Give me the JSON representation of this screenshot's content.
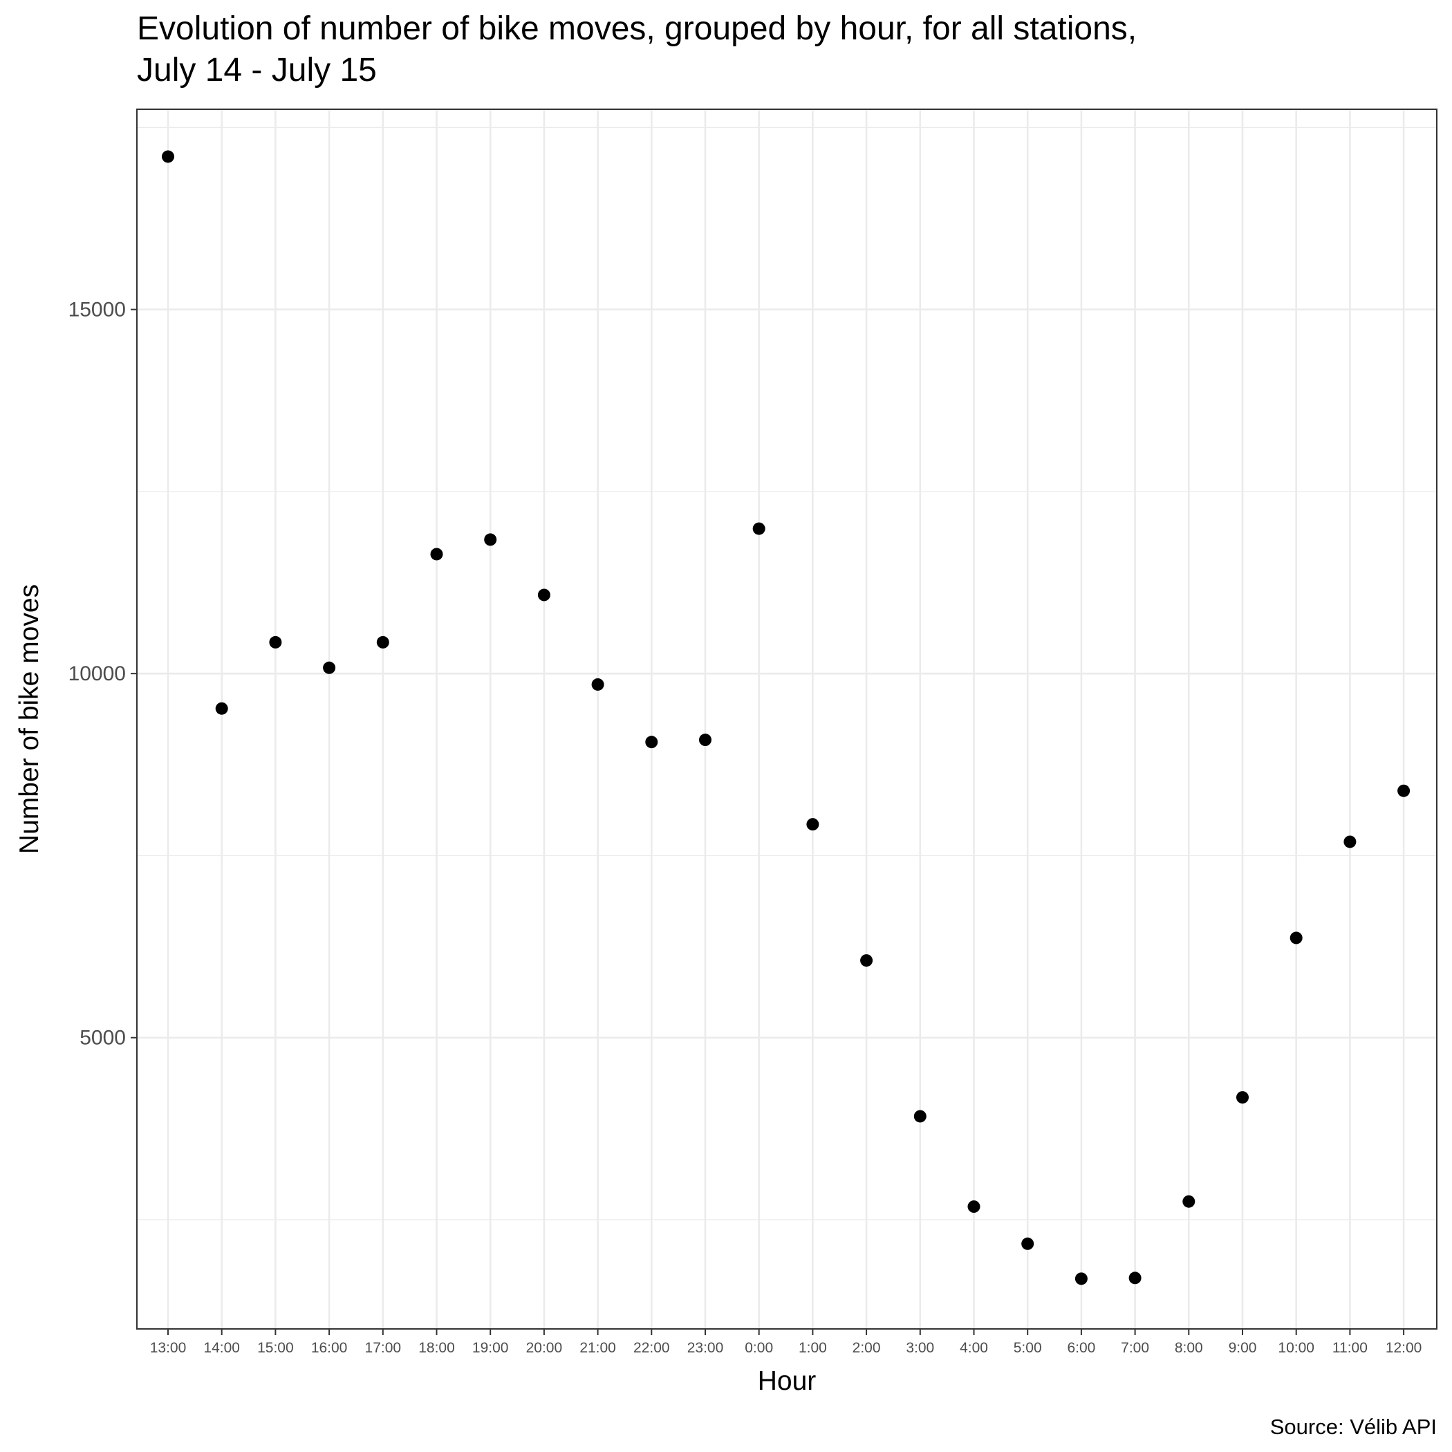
{
  "chart_data": {
    "type": "scatter",
    "title_lines": [
      "Evolution of number of bike moves, grouped by hour, for all stations,",
      "July 14 - July 15"
    ],
    "xlabel": "Hour",
    "ylabel": "Number of bike moves",
    "caption": "Source: Vélib API",
    "categories": [
      "13:00",
      "14:00",
      "15:00",
      "16:00",
      "17:00",
      "18:00",
      "19:00",
      "20:00",
      "21:00",
      "22:00",
      "23:00",
      "0:00",
      "1:00",
      "2:00",
      "3:00",
      "4:00",
      "5:00",
      "6:00",
      "7:00",
      "8:00",
      "9:00",
      "10:00",
      "11:00",
      "12:00"
    ],
    "values": [
      17100,
      9520,
      10430,
      10080,
      10430,
      11640,
      11840,
      11080,
      9850,
      9060,
      9090,
      11990,
      7930,
      6060,
      3920,
      2680,
      2170,
      1690,
      1700,
      2750,
      4180,
      6370,
      7690,
      8390
    ],
    "y_ticks": [
      5000,
      10000,
      15000
    ],
    "ylim": [
      1000,
      17750
    ],
    "grid": true,
    "point_color": "#000000",
    "grid_color": "#ebebeb",
    "panel_border_color": "#333333"
  }
}
